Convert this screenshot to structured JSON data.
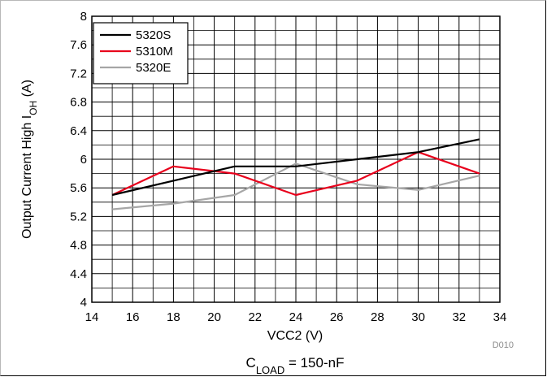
{
  "chart_data": {
    "type": "line",
    "title": "",
    "xlabel": "VCC2 (V)",
    "ylabel": {
      "main": "Output Current High I",
      "sub": "OH",
      "unit": " (A)"
    },
    "xlim": [
      14,
      34
    ],
    "ylim": [
      4,
      8
    ],
    "x_major_ticks": [
      14,
      16,
      18,
      20,
      22,
      24,
      26,
      28,
      30,
      32,
      34
    ],
    "x_minor_step": 1,
    "y_ticks": [
      4,
      4.4,
      4.8,
      5.2,
      5.6,
      6,
      6.4,
      6.8,
      7.2,
      7.6,
      8
    ],
    "y_minor_step": 0.2,
    "grid": true,
    "legend_position": "top-left",
    "series": [
      {
        "name": "5320S",
        "color": "#000000",
        "points": [
          [
            15,
            5.5
          ],
          [
            18,
            5.7
          ],
          [
            21,
            5.9
          ],
          [
            24,
            5.9
          ],
          [
            27,
            6.0
          ],
          [
            30,
            6.1
          ],
          [
            33,
            6.28
          ]
        ]
      },
      {
        "name": "5310M",
        "color": "#e8001c",
        "points": [
          [
            15,
            5.5
          ],
          [
            18,
            5.9
          ],
          [
            21,
            5.8
          ],
          [
            24,
            5.5
          ],
          [
            27,
            5.7
          ],
          [
            30,
            6.1
          ],
          [
            33,
            5.8
          ]
        ]
      },
      {
        "name": "5320E",
        "color": "#a6a6a6",
        "points": [
          [
            15,
            5.3
          ],
          [
            18,
            5.38
          ],
          [
            21,
            5.5
          ],
          [
            24,
            5.94
          ],
          [
            27,
            5.65
          ],
          [
            30,
            5.57
          ],
          [
            33,
            5.77
          ]
        ]
      }
    ]
  },
  "figure_id": "D010",
  "caption": {
    "main": "C",
    "sub": "LOAD",
    "rest": " = 150-nF"
  }
}
